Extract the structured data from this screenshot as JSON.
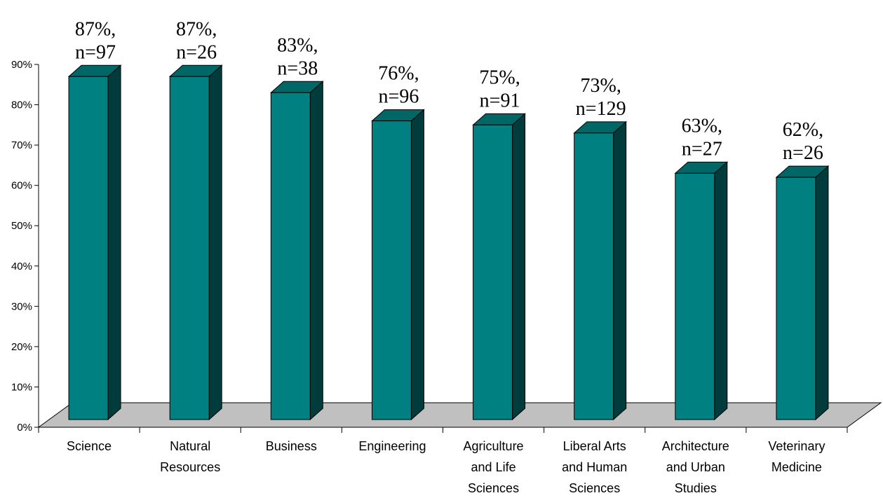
{
  "chart_data": {
    "type": "bar",
    "style": "3d-column",
    "title": "",
    "xlabel": "",
    "ylabel": "",
    "ylim": [
      0,
      90
    ],
    "ytick_values": [
      0,
      10,
      20,
      30,
      40,
      50,
      60,
      70,
      80,
      90
    ],
    "ytick_labels": [
      "0%",
      "10%",
      "20%",
      "30%",
      "40%",
      "50%",
      "60%",
      "70%",
      "80%",
      "90%"
    ],
    "grid": false,
    "legend": "none",
    "categories": [
      [
        "Science"
      ],
      [
        "Natural",
        "Resources"
      ],
      [
        "Business"
      ],
      [
        "Engineering"
      ],
      [
        "Agriculture",
        "and Life",
        "Sciences"
      ],
      [
        "Liberal Arts",
        "and Human",
        "Sciences"
      ],
      [
        "Architecture",
        "and Urban",
        "Studies"
      ],
      [
        "Veterinary",
        "Medicine"
      ]
    ],
    "values": [
      87,
      87,
      83,
      76,
      75,
      73,
      63,
      62
    ],
    "data_labels": [
      [
        "87%,",
        "n=97"
      ],
      [
        "87%,",
        "n=26"
      ],
      [
        "83%,",
        "n=38"
      ],
      [
        "76%,",
        "n=96"
      ],
      [
        "75%,",
        "n=91"
      ],
      [
        "73%,",
        "n=129"
      ],
      [
        "63%,",
        "n=27"
      ],
      [
        "62%,",
        "n=26"
      ]
    ],
    "colors": {
      "bar_front": "#008080",
      "bar_top": "#006666",
      "bar_side": "#003c3c",
      "floor": "#c0c0c0"
    }
  }
}
